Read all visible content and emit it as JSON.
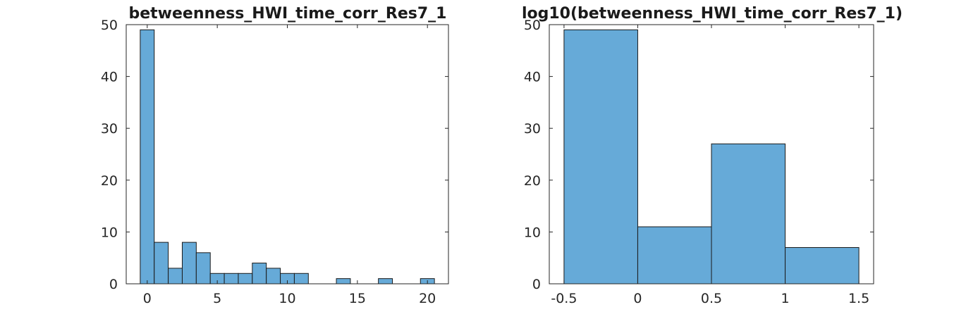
{
  "chart_data": [
    {
      "type": "bar",
      "title": "betweenness_HWI_time_corr_Res7_1",
      "xlabel": "",
      "ylabel": "",
      "bar_color": "#66aad8",
      "bin_width": 1,
      "bins": [
        {
          "x0": -0.5,
          "x1": 0.5,
          "count": 49
        },
        {
          "x0": 0.5,
          "x1": 1.5,
          "count": 8
        },
        {
          "x0": 1.5,
          "x1": 2.5,
          "count": 3
        },
        {
          "x0": 2.5,
          "x1": 3.5,
          "count": 8
        },
        {
          "x0": 3.5,
          "x1": 4.5,
          "count": 6
        },
        {
          "x0": 4.5,
          "x1": 5.5,
          "count": 2
        },
        {
          "x0": 5.5,
          "x1": 6.5,
          "count": 2
        },
        {
          "x0": 6.5,
          "x1": 7.5,
          "count": 2
        },
        {
          "x0": 7.5,
          "x1": 8.5,
          "count": 4
        },
        {
          "x0": 8.5,
          "x1": 9.5,
          "count": 3
        },
        {
          "x0": 9.5,
          "x1": 10.5,
          "count": 2
        },
        {
          "x0": 10.5,
          "x1": 11.5,
          "count": 2
        },
        {
          "x0": 11.5,
          "x1": 12.5,
          "count": 0
        },
        {
          "x0": 12.5,
          "x1": 13.5,
          "count": 0
        },
        {
          "x0": 13.5,
          "x1": 14.5,
          "count": 1
        },
        {
          "x0": 14.5,
          "x1": 15.5,
          "count": 0
        },
        {
          "x0": 15.5,
          "x1": 16.5,
          "count": 0
        },
        {
          "x0": 16.5,
          "x1": 17.5,
          "count": 1
        },
        {
          "x0": 17.5,
          "x1": 18.5,
          "count": 0
        },
        {
          "x0": 18.5,
          "x1": 19.5,
          "count": 0
        },
        {
          "x0": 19.5,
          "x1": 20.5,
          "count": 1
        }
      ],
      "xlim": [
        -1.5,
        21.5
      ],
      "ylim": [
        0,
        50
      ],
      "xticks": [
        0,
        5,
        10,
        15,
        20
      ],
      "xtick_labels": [
        "0",
        "5",
        "10",
        "15",
        "20"
      ],
      "yticks": [
        0,
        10,
        20,
        30,
        40,
        50
      ],
      "ytick_labels": [
        "0",
        "10",
        "20",
        "30",
        "40",
        "50"
      ],
      "grid": false
    },
    {
      "type": "bar",
      "title": "log10(betweenness_HWI_time_corr_Res7_1)",
      "xlabel": "",
      "ylabel": "",
      "bar_color": "#66aad8",
      "bin_width": 0.5,
      "bins": [
        {
          "x0": -0.5,
          "x1": 0.0,
          "count": 49
        },
        {
          "x0": 0.0,
          "x1": 0.5,
          "count": 11
        },
        {
          "x0": 0.5,
          "x1": 1.0,
          "count": 27
        },
        {
          "x0": 1.0,
          "x1": 1.5,
          "count": 7
        }
      ],
      "xlim": [
        -0.6,
        1.6
      ],
      "ylim": [
        0,
        50
      ],
      "xticks": [
        -0.5,
        0,
        0.5,
        1,
        1.5
      ],
      "xtick_labels": [
        "-0.5",
        "0",
        "0.5",
        "1",
        "1.5"
      ],
      "yticks": [
        0,
        10,
        20,
        30,
        40,
        50
      ],
      "ytick_labels": [
        "0",
        "10",
        "20",
        "30",
        "40",
        "50"
      ],
      "grid": false
    }
  ]
}
